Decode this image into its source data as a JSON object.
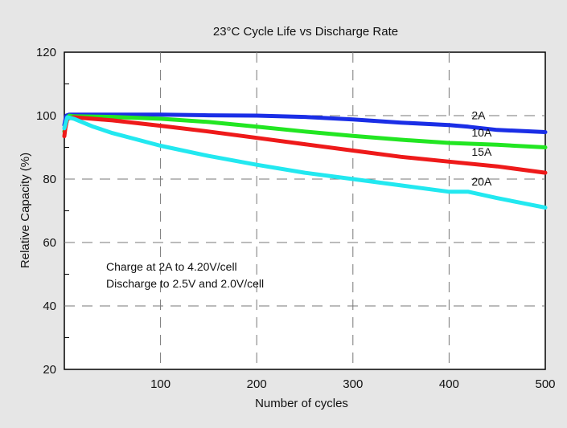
{
  "chart_data": {
    "type": "line",
    "title": "23°C  Cycle Life vs Discharge Rate",
    "xlabel": "Number of cycles",
    "ylabel": "Relative Capacity (%)",
    "xlim": [
      0,
      500
    ],
    "ylim": [
      20,
      120
    ],
    "x_ticks": [
      100,
      200,
      300,
      400,
      500
    ],
    "y_ticks": [
      20,
      40,
      60,
      80,
      100,
      120
    ],
    "grid": true,
    "annotations": [
      "Charge at 2A to 4.20V/cell",
      "Discharge to 2.5V and 2.0V/cell"
    ],
    "series": [
      {
        "name": "2A",
        "color": "#1a2ee6",
        "x": [
          0,
          2,
          5,
          10,
          50,
          100,
          150,
          200,
          250,
          300,
          350,
          400,
          420,
          450,
          500
        ],
        "y": [
          97,
          100,
          100.3,
          100.3,
          100.3,
          100.3,
          100.1,
          100,
          99.6,
          98.8,
          97.8,
          97,
          96.5,
          95.5,
          94.8
        ]
      },
      {
        "name": "10A",
        "color": "#22e622",
        "x": [
          0,
          3,
          5,
          10,
          50,
          100,
          150,
          200,
          250,
          300,
          350,
          400,
          450,
          500
        ],
        "y": [
          95,
          98.8,
          100,
          99.8,
          99.6,
          99,
          98,
          96.5,
          95,
          93.6,
          92.4,
          91.4,
          90.8,
          90
        ]
      },
      {
        "name": "15A",
        "color": "#ee1a1a",
        "x": [
          0,
          1,
          3,
          10,
          50,
          100,
          150,
          200,
          250,
          300,
          350,
          400,
          450,
          500
        ],
        "y": [
          93.5,
          96,
          99,
          99.5,
          98.5,
          96.8,
          95,
          93,
          91,
          89,
          87,
          85.5,
          84,
          82
        ]
      },
      {
        "name": "20A",
        "color": "#22e8f0",
        "x": [
          0,
          3,
          10,
          30,
          50,
          100,
          150,
          200,
          250,
          300,
          350,
          400,
          420,
          450,
          500
        ],
        "y": [
          96,
          99.5,
          99,
          96.5,
          94.5,
          90.5,
          87.3,
          84.5,
          82,
          80,
          78,
          76,
          76,
          74,
          71
        ]
      }
    ]
  }
}
